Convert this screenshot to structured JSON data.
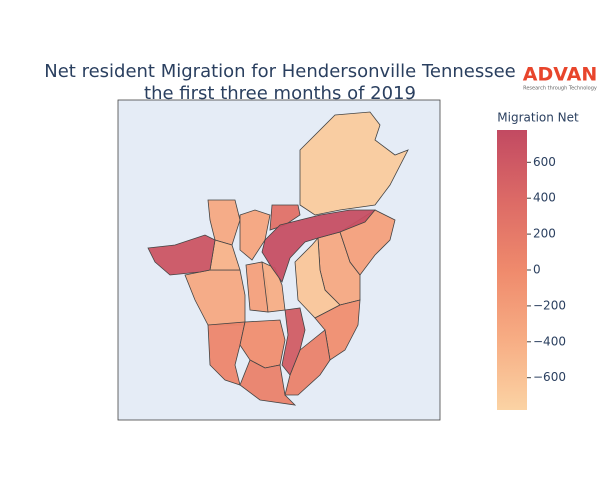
{
  "chart_data": {
    "type": "choropleth",
    "title": [
      "Net resident Migration for Hendersonville Tennessee",
      "the first three months of 2019"
    ],
    "colorbar_title": "Migration Net",
    "logo": {
      "name": "ADVAN",
      "tagline": "Research through Technology"
    },
    "values": [
      -700,
      720,
      650,
      -250,
      -350,
      -650,
      -50,
      50,
      100,
      550,
      100,
      -50,
      -350,
      -350,
      -300,
      300,
      -250,
      -400,
      -450
    ],
    "zlim": [
      -780,
      780
    ],
    "zticks": [
      {
        "value": -600,
        "label": "−600"
      },
      {
        "value": -400,
        "label": "−400"
      },
      {
        "value": -200,
        "label": "−200"
      },
      0,
      200,
      400,
      600
    ],
    "colorscale": [
      [
        0,
        "#fbd3a4"
      ],
      [
        0.25,
        "#f7ad84"
      ],
      [
        0.5,
        "#ef8a6c"
      ],
      [
        0.75,
        "#dc6a66"
      ],
      [
        1,
        "#c24a62"
      ]
    ]
  }
}
